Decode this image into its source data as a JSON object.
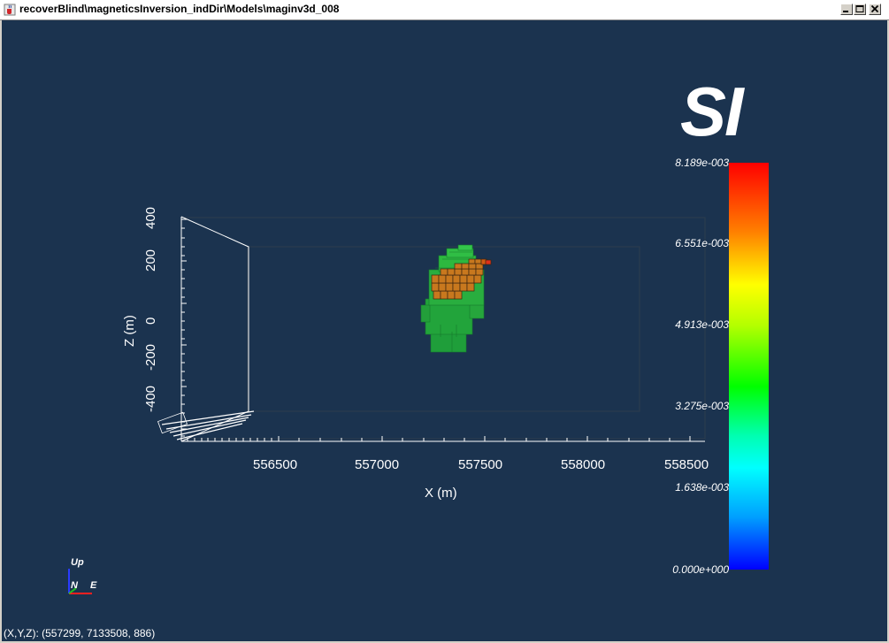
{
  "window": {
    "title": "recoverBlind\\magneticsInversion_indDir\\Models\\maginv3d_008"
  },
  "icons": {
    "app": "java-cup-icon",
    "minimize": "minimize-icon",
    "maximize": "maximize-icon",
    "close": "close-icon"
  },
  "plot": {
    "x_axis_title": "X (m)",
    "z_axis_title": "Z (m)",
    "x_ticks": [
      "556500",
      "557000",
      "557500",
      "558000",
      "558500"
    ],
    "z_ticks": [
      "400",
      "200",
      "0",
      "-200",
      "-400"
    ]
  },
  "colorbar": {
    "unit": "SI",
    "labels": [
      "8.189e-003",
      "6.551e-003",
      "4.913e-003",
      "3.275e-003",
      "1.638e-003",
      "0.000e+000"
    ]
  },
  "orientation": {
    "up": "Up",
    "north": "N",
    "east": "E"
  },
  "status": {
    "coords": "(X,Y,Z): (557299, 7133508,   886)"
  },
  "colors": {
    "background": "#1b334f",
    "model_low": "#1f9e3a",
    "model_mid": "#2db83f",
    "model_high": "#c8781e"
  }
}
